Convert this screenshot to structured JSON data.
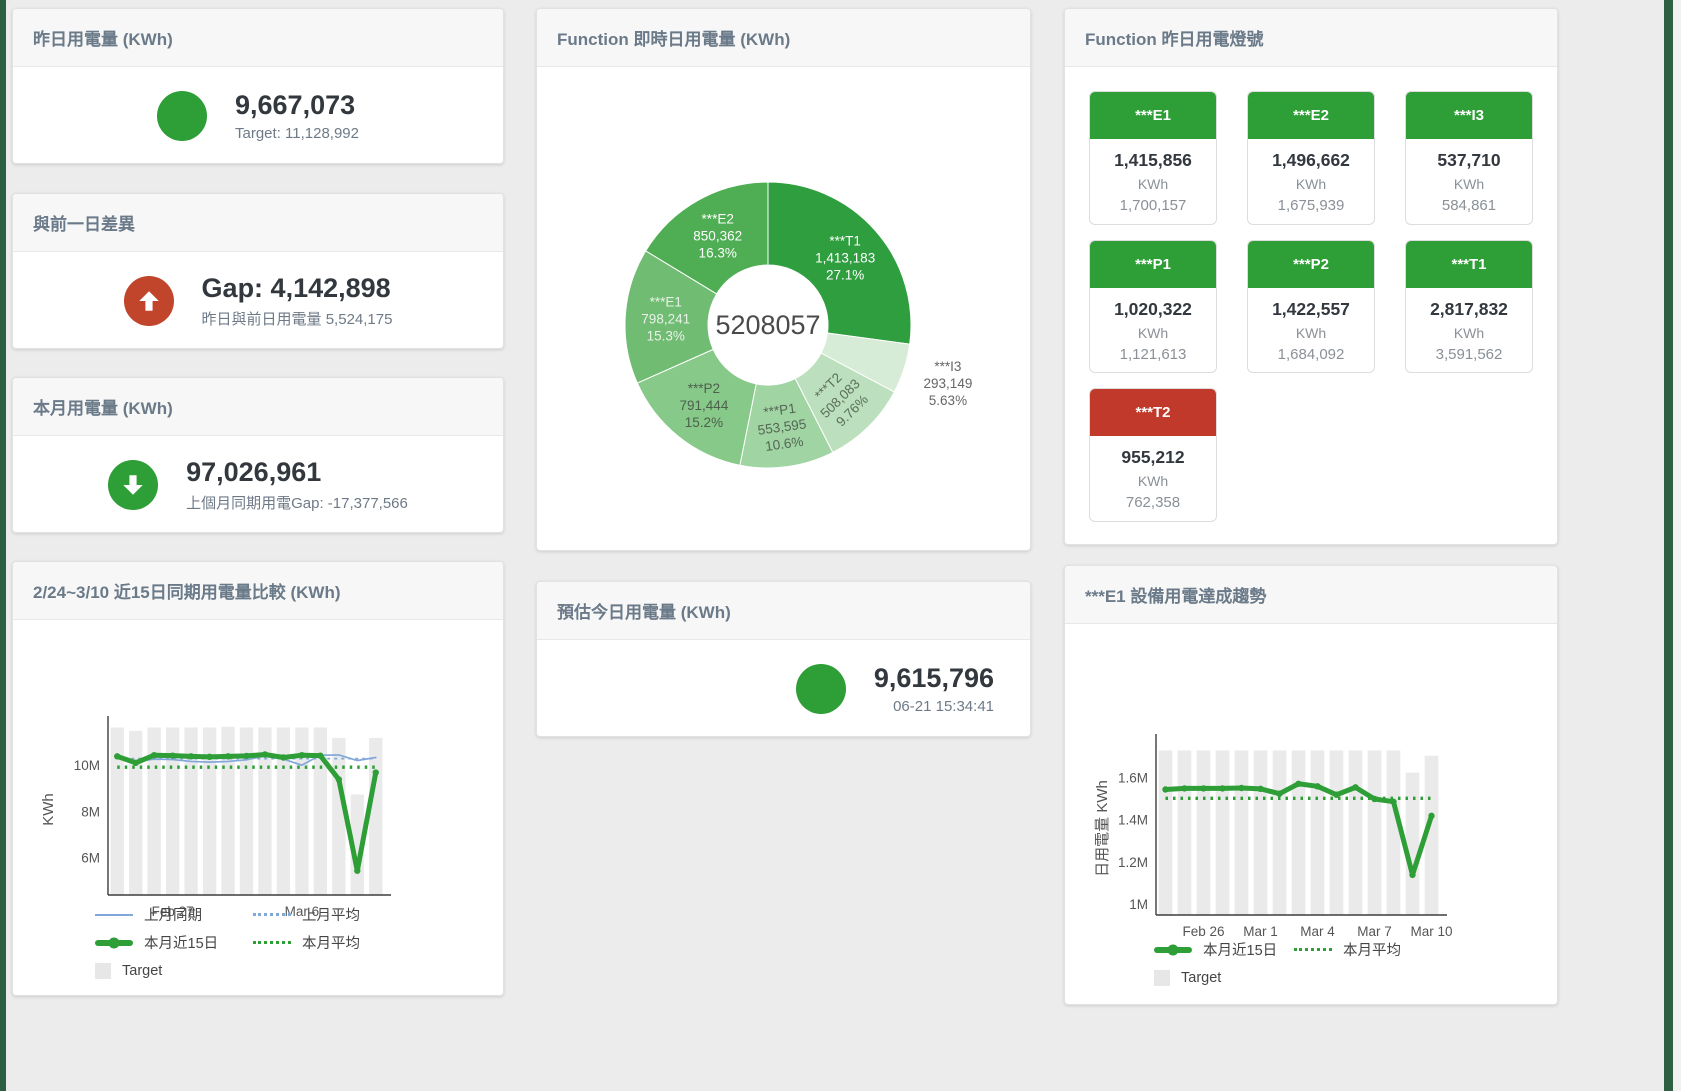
{
  "page": {
    "accent_green": "#2e9e36",
    "accent_red": "#c0452b",
    "background": "#ececec"
  },
  "cards": {
    "yesterday": {
      "title": "昨日用電量 (KWh)",
      "value": "9,667,073",
      "subtitle": "Target: 11,128,992",
      "indicator": "green-circle"
    },
    "gap": {
      "title": "與前一日差異",
      "value": "Gap: 4,142,898",
      "subtitle": "昨日與前日用電量 5,524,175",
      "indicator": "red-circle-up-arrow"
    },
    "month": {
      "title": "本月用電量 (KWh)",
      "value": "97,026,961",
      "subtitle": "上個月同期用電Gap: -17,377,566",
      "indicator": "green-circle-down-arrow"
    },
    "estimate": {
      "title": "預估今日用電量 (KWh)",
      "value": "9,615,796",
      "subtitle": "06-21 15:34:41",
      "indicator": "green-circle"
    },
    "donut": {
      "title": "Function 即時日用電量 (KWh)"
    },
    "compare": {
      "title": "2/24~3/10 近15日同期用電量比較 (KWh)"
    },
    "trend": {
      "title": "***E1 設備用電達成趨勢"
    },
    "lights": {
      "title": "Function 昨日用電燈號",
      "colors": {
        "green": "#2e9e36",
        "red": "#c0392b"
      },
      "tiles": [
        {
          "label": "***E1",
          "value": "1,415,856",
          "unit": "KWh",
          "target": "1,700,157",
          "status": "green"
        },
        {
          "label": "***E2",
          "value": "1,496,662",
          "unit": "KWh",
          "target": "1,675,939",
          "status": "green"
        },
        {
          "label": "***I3",
          "value": "537,710",
          "unit": "KWh",
          "target": "584,861",
          "status": "green"
        },
        {
          "label": "***P1",
          "value": "1,020,322",
          "unit": "KWh",
          "target": "1,121,613",
          "status": "green"
        },
        {
          "label": "***P2",
          "value": "1,422,557",
          "unit": "KWh",
          "target": "1,684,092",
          "status": "green"
        },
        {
          "label": "***T1",
          "value": "2,817,832",
          "unit": "KWh",
          "target": "3,591,562",
          "status": "green"
        },
        {
          "label": "***T2",
          "value": "955,212",
          "unit": "KWh",
          "target": "762,358",
          "status": "red"
        }
      ]
    }
  },
  "chart_data": [
    {
      "id": "donut-realtime",
      "type": "pie",
      "title": "Function 即時日用電量 (KWh)",
      "center_total": "5208057",
      "hole": 0.42,
      "labels": [
        "***T1",
        "***I3",
        "***T2",
        "***P1",
        "***P2",
        "***E1",
        "***E2"
      ],
      "values": [
        1413183,
        293149,
        508083,
        553595,
        791444,
        798241,
        850362
      ],
      "display_values": [
        "1,413,183",
        "293,149",
        "508,083",
        "553,595",
        "791,444",
        "798,241",
        "850,362"
      ],
      "percents": [
        "27.1%",
        "5.63%",
        "9.76%",
        "10.6%",
        "15.2%",
        "15.3%",
        "16.3%"
      ],
      "colors": [
        "#2f9e3f",
        "#d7ecd6",
        "#bce0bd",
        "#a0d4a2",
        "#86c989",
        "#6fbc72",
        "#4fae54"
      ],
      "text_colors": [
        "#ffffff",
        "#666666",
        "#5a6e5a",
        "#556655",
        "#4d5f4d",
        "#e9f2e9",
        "#ffffff"
      ]
    },
    {
      "id": "compare-15day",
      "type": "line+bar",
      "title": "2/24~3/10 近15日同期用電量比較 (KWh)",
      "ylabel": "KWh",
      "ylim": [
        4400000,
        11800000
      ],
      "yticks": [
        {
          "v": 6000000,
          "label": "6M"
        },
        {
          "v": 8000000,
          "label": "8M"
        },
        {
          "v": 10000000,
          "label": "10M"
        }
      ],
      "xticks": [
        {
          "i": 3,
          "label": "Feb 27"
        },
        {
          "i": 10,
          "label": "Mar 6"
        }
      ],
      "bars": {
        "name": "Target",
        "color": "#eaeaea",
        "values": [
          11650000,
          11500000,
          11650000,
          11650000,
          11650000,
          11650000,
          11680000,
          11650000,
          11650000,
          11650000,
          11650000,
          11650000,
          11200000,
          8750000,
          11200000
        ]
      },
      "series": [
        {
          "name": "上月同期",
          "style": "line",
          "color": "#82a8d9",
          "values": [
            10450000,
            10180000,
            10280000,
            10260000,
            10180000,
            10150000,
            10180000,
            10250000,
            10420000,
            10280000,
            10020000,
            10450000,
            10460000,
            10220000,
            10350000
          ]
        },
        {
          "name": "上月平均",
          "style": "dash",
          "color": "#82a8d9",
          "const": 10300000
        },
        {
          "name": "本月近15日",
          "style": "thick",
          "color": "#2e9e36",
          "values": [
            10400000,
            10120000,
            10450000,
            10430000,
            10400000,
            10380000,
            10400000,
            10420000,
            10480000,
            10350000,
            10450000,
            10430000,
            9400000,
            5450000,
            9700000
          ]
        },
        {
          "name": "本月平均",
          "style": "dash-thick",
          "color": "#2e9e36",
          "const": 9930000
        }
      ],
      "legend": [
        {
          "label": "上月同期"
        },
        {
          "label": "上月平均"
        },
        {
          "label": "本月近15日"
        },
        {
          "label": "本月平均"
        },
        {
          "label": "Target"
        }
      ]
    },
    {
      "id": "trend-e1",
      "type": "line+bar",
      "title": "***E1 設備用電達成趨勢",
      "ylabel": "日用電量 KWh",
      "ylim": [
        950000,
        1770000
      ],
      "yticks": [
        {
          "v": 1000000,
          "label": "1M"
        },
        {
          "v": 1200000,
          "label": "1.2M"
        },
        {
          "v": 1400000,
          "label": "1.4M"
        },
        {
          "v": 1600000,
          "label": "1.6M"
        }
      ],
      "xticks": [
        {
          "i": 2,
          "label": "Feb 26"
        },
        {
          "i": 5,
          "label": "Mar 1"
        },
        {
          "i": 8,
          "label": "Mar 4"
        },
        {
          "i": 11,
          "label": "Mar 7"
        },
        {
          "i": 14,
          "label": "Mar 10"
        }
      ],
      "bars": {
        "name": "Target",
        "color": "#eaeaea",
        "values": [
          1730000,
          1730000,
          1730000,
          1730000,
          1730000,
          1730000,
          1730000,
          1730000,
          1730000,
          1730000,
          1730000,
          1730000,
          1730000,
          1625000,
          1705000
        ]
      },
      "series": [
        {
          "name": "本月近15日",
          "style": "thick",
          "color": "#2e9e36",
          "values": [
            1545000,
            1550000,
            1550000,
            1550000,
            1552000,
            1548000,
            1525000,
            1572000,
            1560000,
            1520000,
            1555000,
            1500000,
            1487000,
            1140000,
            1420000
          ]
        },
        {
          "name": "本月平均",
          "style": "dash-thick",
          "color": "#2e9e36",
          "const": 1503000
        }
      ],
      "legend": [
        {
          "label": "本月近15日"
        },
        {
          "label": "本月平均"
        },
        {
          "label": "Target"
        }
      ]
    }
  ]
}
